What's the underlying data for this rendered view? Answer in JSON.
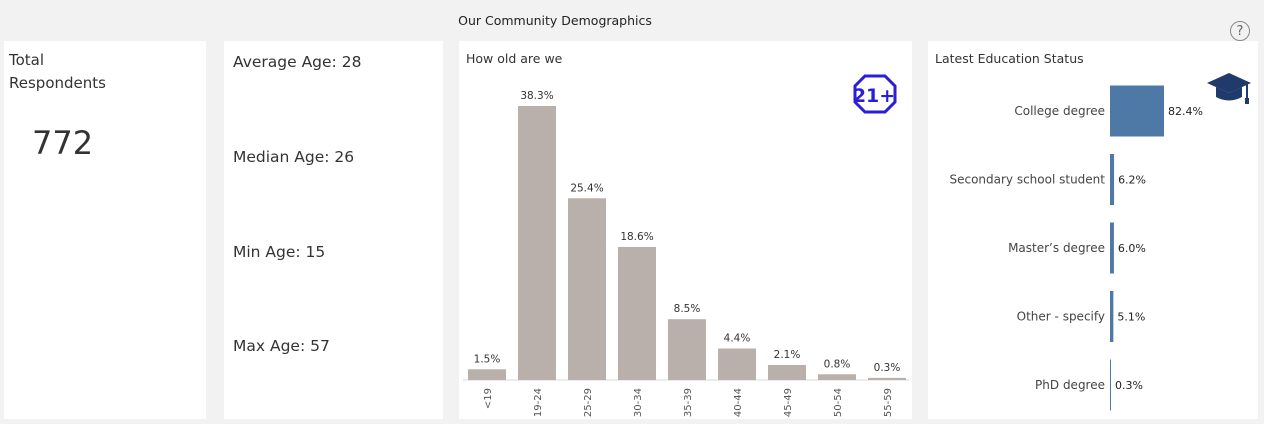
{
  "dashboard": {
    "title": "Our Community Demographics",
    "help_glyph": "?"
  },
  "total": {
    "label": "Total\nRespondents",
    "value": "772"
  },
  "stats": [
    {
      "text": "Average Age: 28"
    },
    {
      "text": "Median Age: 26"
    },
    {
      "text": "Min Age: 15"
    },
    {
      "text": "Max Age: 57"
    }
  ],
  "age_panel": {
    "title": "How old are we",
    "badge_icon": "age-21-plus-icon",
    "badge_text": "21+",
    "badge_color": "#2a1fd6"
  },
  "edu_panel": {
    "title": "Latest Education Status",
    "icon": "graduation-cap-icon"
  },
  "chart_data": [
    {
      "type": "bar",
      "title": "How old are we",
      "categories": [
        "<19",
        "19-24",
        "25-29",
        "30-34",
        "35-39",
        "40-44",
        "45-49",
        "50-54",
        "55-59"
      ],
      "values": [
        1.5,
        38.3,
        25.4,
        18.6,
        8.5,
        4.4,
        2.1,
        0.8,
        0.3
      ],
      "labels": [
        "1.5%",
        "38.3%",
        "25.4%",
        "18.6%",
        "8.5%",
        "4.4%",
        "2.1%",
        "0.8%",
        "0.3%"
      ],
      "color": "#bab0ab",
      "ylim": [
        0,
        38.3
      ],
      "grid": false
    },
    {
      "type": "bar",
      "orientation": "horizontal",
      "title": "Latest Education Status",
      "categories": [
        "College degree",
        "Secondary school student",
        "Master’s degree",
        "Other - specify",
        "PhD degree"
      ],
      "values": [
        82.4,
        6.2,
        6.0,
        5.1,
        0.3
      ],
      "labels": [
        "82.4%",
        "6.2%",
        "6.0%",
        "5.1%",
        "0.3%"
      ],
      "color": "#4e79a7",
      "xlim": [
        0,
        82.4
      ],
      "grid": false
    }
  ]
}
